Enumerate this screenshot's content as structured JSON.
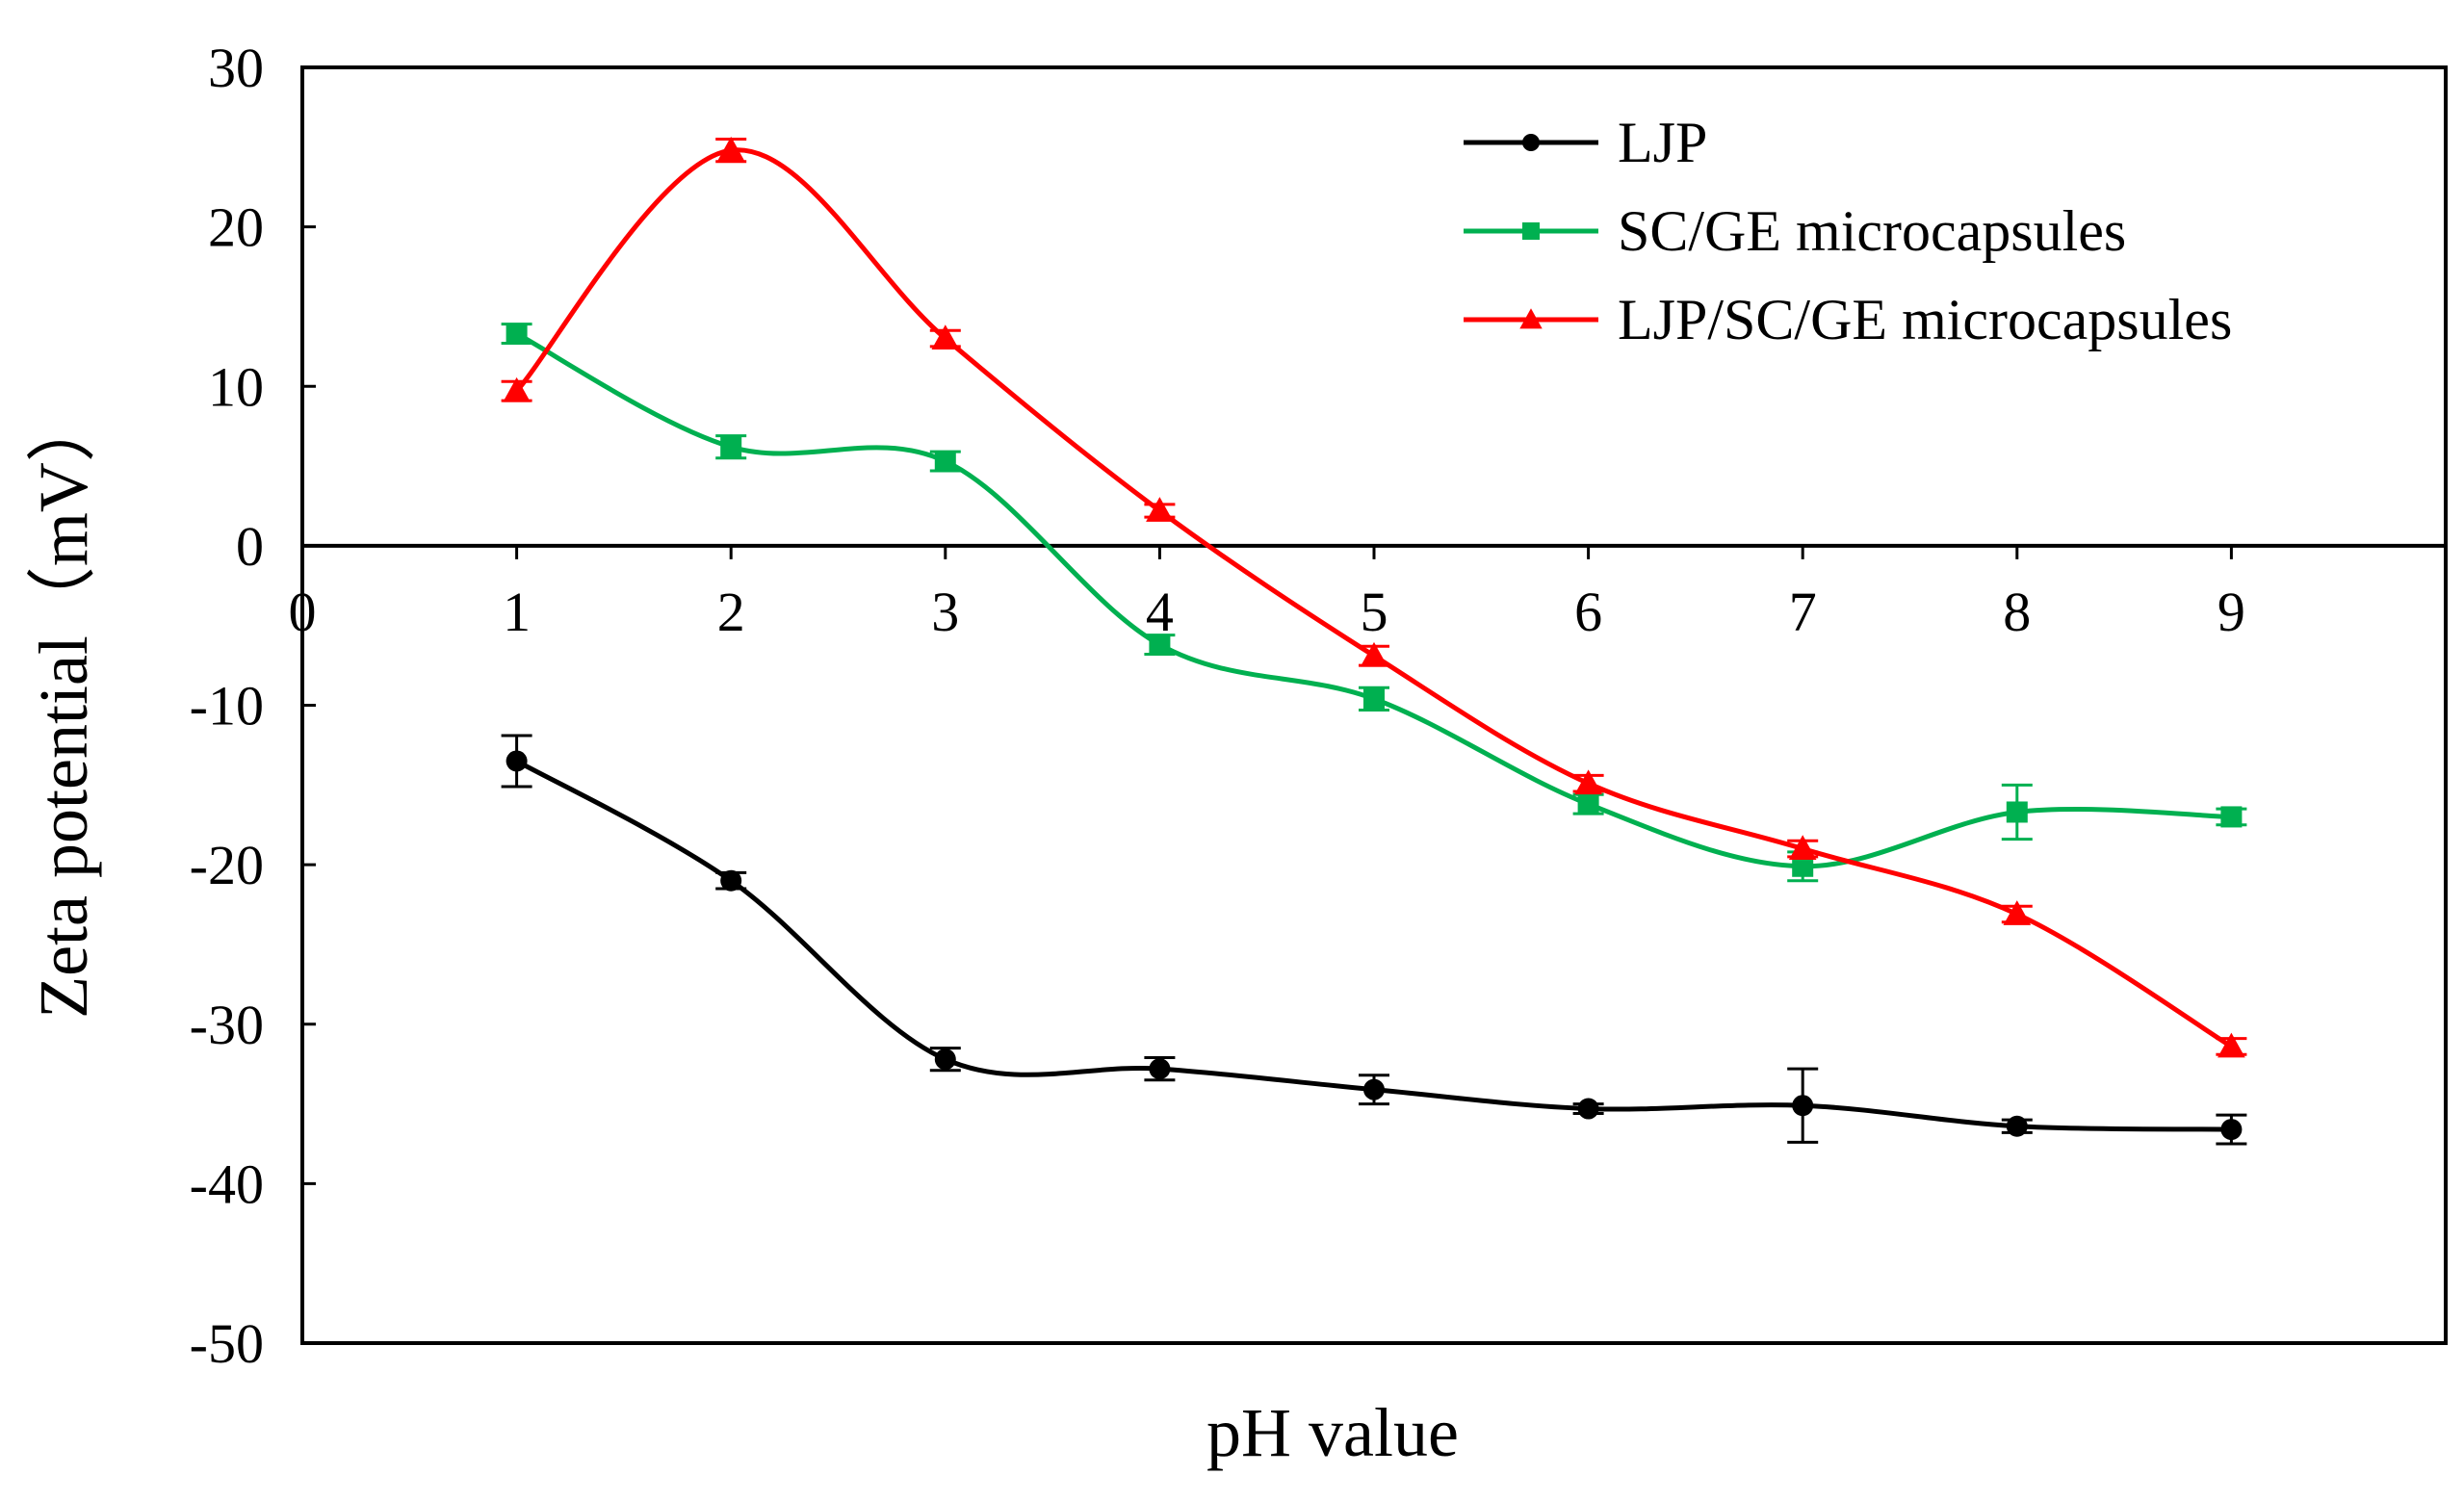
{
  "chart_data": {
    "type": "line",
    "title": "",
    "xlabel": "pH value",
    "ylabel": "Zeta potential（mV）",
    "xlim": [
      0,
      10
    ],
    "ylim": [
      -50,
      30
    ],
    "x_ticks": [
      "0",
      "1",
      "2",
      "3",
      "4",
      "5",
      "6",
      "7",
      "8",
      "9"
    ],
    "y_ticks": [
      "30",
      "20",
      "10",
      "0",
      "-10",
      "-20",
      "-30",
      "-40",
      "-50"
    ],
    "legend_position": "top-right",
    "x": [
      1,
      2,
      3,
      4,
      5,
      6,
      7,
      8,
      9
    ],
    "series": [
      {
        "name": "LJP",
        "color": "#000000",
        "marker": "circle",
        "values": [
          -13.5,
          -21,
          -32.2,
          -32.8,
          -34.1,
          -35.3,
          -35.1,
          -36.4,
          -36.6
        ],
        "errors": [
          1.6,
          0.5,
          0.7,
          0.7,
          0.9,
          0.3,
          2.3,
          0.4,
          0.9
        ]
      },
      {
        "name": "SC/GE microcapsules",
        "color": "#00b050",
        "marker": "square",
        "values": [
          13.3,
          6.2,
          5.3,
          -6.2,
          -9.6,
          -16.2,
          -20.1,
          -16.7,
          -17.0
        ],
        "errors": [
          0.6,
          0.7,
          0.6,
          0.6,
          0.7,
          0.6,
          0.9,
          1.7,
          0.5
        ]
      },
      {
        "name": "LJP/SC/GE microcapsules",
        "color": "#ff0000",
        "marker": "triangle",
        "values": [
          9.7,
          24.8,
          13.0,
          2.2,
          -6.9,
          -14.9,
          -19.0,
          -23.1,
          -31.4
        ],
        "errors": [
          0.6,
          0.7,
          0.5,
          0.4,
          0.6,
          0.5,
          0.5,
          0.5,
          0.5
        ]
      }
    ]
  }
}
